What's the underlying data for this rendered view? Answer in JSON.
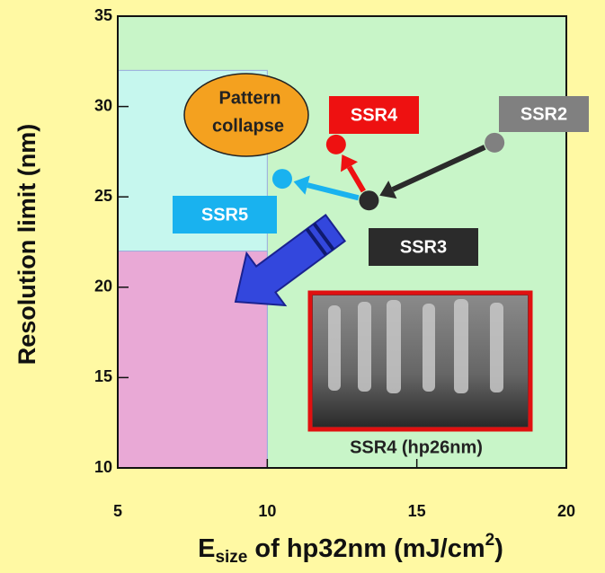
{
  "chart_data": {
    "type": "scatter",
    "y_label": "Resolution limit (nm)",
    "x_label": {
      "main": "E",
      "sub": "size",
      "rest": " of hp32nm (mJ/cm",
      "sup": "2",
      "end": ")"
    },
    "xlim": [
      5,
      20
    ],
    "xticks": [
      5,
      10,
      15,
      20
    ],
    "ylim": [
      10,
      35
    ],
    "yticks": [
      10,
      15,
      20,
      25,
      30,
      35
    ],
    "regions": [
      {
        "x": [
          5,
          10
        ],
        "y": [
          10,
          32
        ],
        "color": "#c6f7ee"
      },
      {
        "x": [
          5,
          10
        ],
        "y": [
          10,
          22
        ],
        "color": "#e9a9d6"
      }
    ],
    "series": [
      {
        "name": "SSR2",
        "color": "#808080",
        "x": [
          17.6
        ],
        "values": [
          28.0
        ]
      },
      {
        "name": "SSR3",
        "color": "#2b2b2b",
        "x": [
          13.4
        ],
        "values": [
          24.8
        ]
      },
      {
        "name": "SSR4",
        "color": "#ee1111",
        "x": [
          12.3
        ],
        "values": [
          27.9
        ]
      },
      {
        "name": "SSR5",
        "color": "#19b2ef",
        "x": [
          10.5
        ],
        "values": [
          26.0
        ]
      }
    ],
    "annotations": {
      "pattern_collapse": [
        "Pattern",
        "collapse"
      ],
      "image_caption": "SSR4 (hp26nm)"
    }
  }
}
